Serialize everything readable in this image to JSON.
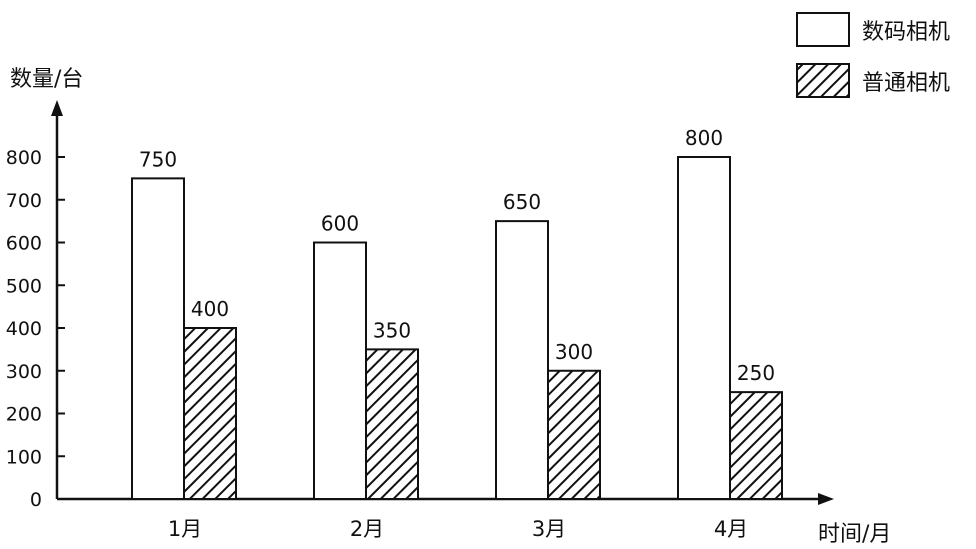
{
  "chart_data": {
    "type": "bar",
    "categories": [
      "1月",
      "2月",
      "3月",
      "4月"
    ],
    "series": [
      {
        "name": "数码相机",
        "values": [
          750,
          600,
          650,
          800
        ],
        "fill": "white"
      },
      {
        "name": "普通相机",
        "values": [
          400,
          350,
          300,
          250
        ],
        "fill": "hatched"
      }
    ],
    "ylabel": "数量/台",
    "xlabel": "时间/月",
    "yticks": [
      "0",
      "100",
      "200",
      "300",
      "400",
      "500",
      "600",
      "700",
      "800"
    ],
    "ylim": [
      0,
      800
    ],
    "grid": false,
    "legend_position": "top-right",
    "data_labels": [
      [
        "750",
        "600",
        "650",
        "800"
      ],
      [
        "400",
        "350",
        "300",
        "250"
      ]
    ]
  }
}
